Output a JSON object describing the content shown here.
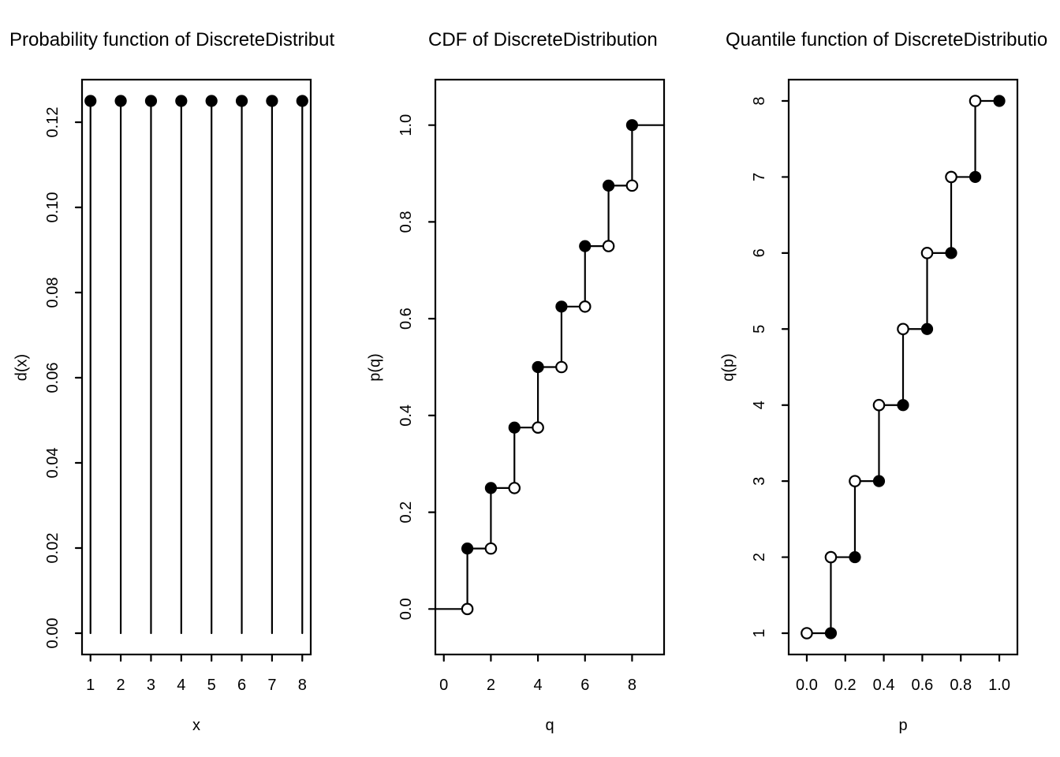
{
  "figure": {
    "background": "#ffffff",
    "foreground": "#000000"
  },
  "style": {
    "line_color": "#000000",
    "point_fill_color": "#000000",
    "point_open_fill_color": "#ffffff",
    "line_width": 2.2,
    "point_radius_filled": 7.6,
    "point_radius_open": 6.7
  },
  "chart_data": [
    {
      "type": "stem",
      "title": "Probability function of DiscreteDistribut",
      "xlabel": "x",
      "ylabel": "d(x)",
      "x": [
        1,
        2,
        3,
        4,
        5,
        6,
        7,
        8
      ],
      "y": [
        0.125,
        0.125,
        0.125,
        0.125,
        0.125,
        0.125,
        0.125,
        0.125
      ],
      "baseline": 0,
      "xlim": [
        0.72,
        8.28
      ],
      "ylim": [
        -0.005,
        0.13
      ],
      "xtick_values": [
        1,
        2,
        3,
        4,
        5,
        6,
        7,
        8
      ],
      "xtick_labels": [
        "1",
        "2",
        "3",
        "4",
        "5",
        "6",
        "7",
        "8"
      ],
      "ytick_values": [
        0.0,
        0.02,
        0.04,
        0.06,
        0.08,
        0.1,
        0.12
      ],
      "ytick_labels": [
        "0.00",
        "0.02",
        "0.04",
        "0.06",
        "0.08",
        "0.10",
        "0.12"
      ],
      "grid": false,
      "legend": null
    },
    {
      "type": "step_cdf",
      "title": "CDF of DiscreteDistribution",
      "xlabel": "q",
      "ylabel": "p(q)",
      "x": [
        1,
        2,
        3,
        4,
        5,
        6,
        7,
        8
      ],
      "cumprob": [
        0.125,
        0.25,
        0.375,
        0.5,
        0.625,
        0.75,
        0.875,
        1.0
      ],
      "baseline": 0,
      "xlim": [
        -0.36,
        9.36
      ],
      "ylim": [
        -0.094,
        1.094
      ],
      "xtick_values": [
        0,
        2,
        4,
        6,
        8
      ],
      "xtick_labels": [
        "0",
        "2",
        "4",
        "6",
        "8"
      ],
      "ytick_values": [
        0.0,
        0.2,
        0.4,
        0.6,
        0.8,
        1.0
      ],
      "ytick_labels": [
        "0.0",
        "0.2",
        "0.4",
        "0.6",
        "0.8",
        "1.0"
      ],
      "grid": false,
      "legend": null
    },
    {
      "type": "step_quantile",
      "title": "Quantile function of DiscreteDistributio",
      "xlabel": "p",
      "ylabel": "q(p)",
      "p_breaks": [
        0,
        0.125,
        0.25,
        0.375,
        0.5,
        0.625,
        0.75,
        0.875,
        1.0
      ],
      "q": [
        1,
        2,
        3,
        4,
        5,
        6,
        7,
        8
      ],
      "xlim": [
        -0.094,
        1.094
      ],
      "ylim": [
        0.72,
        8.28
      ],
      "xtick_values": [
        0.0,
        0.2,
        0.4,
        0.6,
        0.8,
        1.0
      ],
      "xtick_labels": [
        "0.0",
        "0.2",
        "0.4",
        "0.6",
        "0.8",
        "1.0"
      ],
      "ytick_values": [
        1,
        2,
        3,
        4,
        5,
        6,
        7,
        8
      ],
      "ytick_labels": [
        "1",
        "2",
        "3",
        "4",
        "5",
        "6",
        "7",
        "8"
      ],
      "grid": false,
      "legend": null
    }
  ]
}
